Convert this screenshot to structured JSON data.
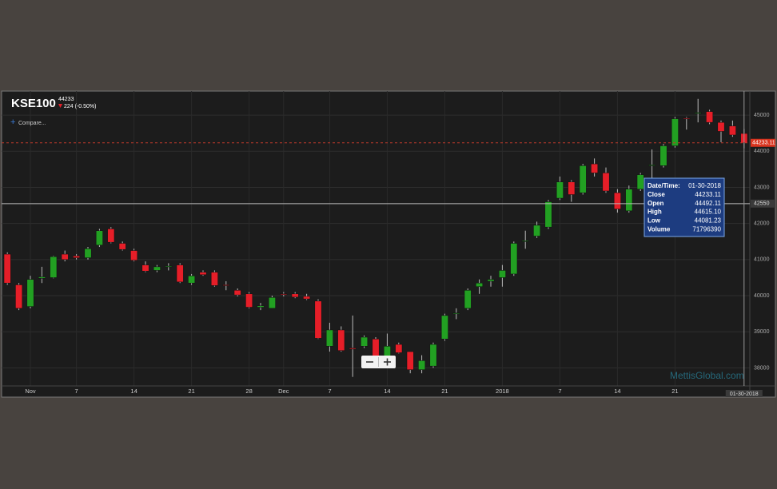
{
  "header": {
    "title": "KSE100",
    "last": 44233,
    "change": "224 (-0.50%)",
    "compare": "Compare..."
  },
  "watermark": "MettisGlobal.com",
  "crosshair_value": 42550,
  "tooltip": {
    "date_label": "Date/Time:",
    "date": "01-30-2018",
    "rows": [
      {
        "label": "Close",
        "value": "44233.11"
      },
      {
        "label": "Open",
        "value": "44492.11"
      },
      {
        "label": "High",
        "value": "44615.10"
      },
      {
        "label": "Low",
        "value": "44081.23"
      },
      {
        "label": "Volume",
        "value": "71796390"
      }
    ]
  },
  "chart_data": {
    "type": "candlestick",
    "up_color": "#22a022",
    "down_color": "#e61e28",
    "grid": true,
    "categories": [
      null,
      null,
      "Nov",
      null,
      null,
      null,
      "7",
      null,
      null,
      null,
      null,
      "14",
      null,
      null,
      null,
      null,
      "21",
      null,
      null,
      null,
      null,
      "28",
      null,
      null,
      "Dec",
      null,
      null,
      null,
      "7",
      null,
      null,
      null,
      null,
      "14",
      null,
      null,
      null,
      null,
      "21",
      null,
      null,
      null,
      null,
      "2018",
      null,
      null,
      null,
      null,
      "7",
      null,
      null,
      null,
      null,
      "14",
      null,
      null,
      null,
      null,
      "21",
      null,
      null,
      null,
      null,
      null,
      null
    ],
    "open": [
      41150,
      40300,
      39700,
      40480,
      40500,
      41150,
      41100,
      41050,
      41400,
      41850,
      41450,
      41250,
      40850,
      40700,
      40800,
      40850,
      40350,
      40650,
      40650,
      40300,
      40150,
      40050,
      39680,
      39650,
      40050,
      40050,
      39980,
      39850,
      38600,
      39050,
      38550,
      38600,
      38800,
      38300,
      38650,
      38450,
      37950,
      38050,
      38800,
      39500,
      39650,
      40250,
      40400,
      40500,
      40600,
      41500,
      41650,
      41900,
      42700,
      43150,
      42850,
      43650,
      43400,
      42850,
      42350,
      42950,
      43600,
      43600,
      44150,
      44920,
      45050,
      45100,
      44800,
      44700,
      44492.11
    ],
    "high": [
      41200,
      40350,
      40550,
      40800,
      41100,
      41250,
      41150,
      41350,
      41850,
      41900,
      41500,
      41300,
      40950,
      40850,
      40900,
      40900,
      40600,
      40700,
      40700,
      40400,
      40200,
      40100,
      39800,
      40000,
      40100,
      40100,
      40050,
      39900,
      39250,
      39150,
      39450,
      38900,
      38850,
      38950,
      38700,
      38450,
      38350,
      38700,
      39500,
      39650,
      40200,
      40450,
      40550,
      40850,
      41500,
      41800,
      42050,
      42650,
      43300,
      43200,
      43650,
      43800,
      43550,
      42950,
      43050,
      43400,
      44050,
      44200,
      44950,
      44950,
      45450,
      45150,
      44850,
      44850,
      44615.1
    ],
    "low": [
      40300,
      39600,
      39650,
      40350,
      40480,
      40950,
      41000,
      41000,
      41350,
      41450,
      41250,
      40950,
      40650,
      40650,
      40700,
      40350,
      40300,
      40550,
      40250,
      40150,
      39980,
      39650,
      39600,
      39650,
      39980,
      39930,
      39880,
      38800,
      38450,
      38450,
      37750,
      38550,
      38300,
      38250,
      38400,
      37850,
      37850,
      38000,
      38750,
      39350,
      39600,
      40050,
      40250,
      40250,
      40550,
      41300,
      41600,
      41850,
      42650,
      42600,
      42800,
      43300,
      42850,
      42300,
      42300,
      42900,
      43200,
      43550,
      44100,
      44600,
      44800,
      44750,
      44250,
      44400,
      44081.23
    ],
    "close": [
      40350,
      39650,
      40450,
      40520,
      41080,
      41000,
      41050,
      41300,
      41800,
      41480,
      41280,
      40980,
      40680,
      40800,
      40820,
      40380,
      40550,
      40580,
      40280,
      40280,
      40020,
      39680,
      39720,
      39950,
      40030,
      39960,
      39910,
      38820,
      39050,
      38480,
      38520,
      38850,
      38320,
      38600,
      38420,
      37950,
      38200,
      38650,
      39450,
      39520,
      40150,
      40350,
      40450,
      40700,
      41450,
      41520,
      41950,
      42600,
      43150,
      42800,
      43600,
      43400,
      42900,
      42400,
      42950,
      43350,
      43620,
      44150,
      44900,
      44900,
      45070,
      44800,
      44550,
      44450,
      44233.11
    ],
    "ylim": [
      37500,
      45600
    ],
    "yticks": [
      38000,
      39000,
      40000,
      41000,
      42000,
      43000,
      44000,
      45000
    ]
  }
}
